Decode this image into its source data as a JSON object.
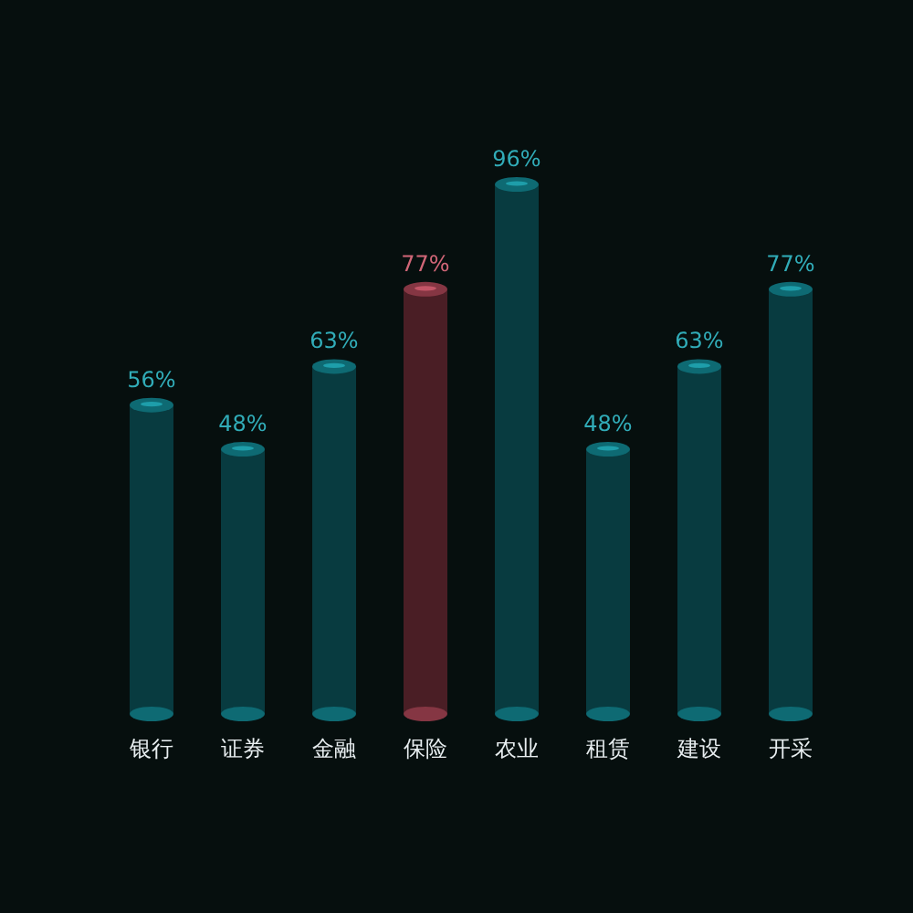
{
  "chart_data": {
    "type": "bar",
    "categories": [
      "银行",
      "证券",
      "金融",
      "保险",
      "农业",
      "租赁",
      "建设",
      "开采"
    ],
    "values": [
      56,
      48,
      63,
      77,
      96,
      48,
      63,
      77
    ],
    "value_labels": [
      "56%",
      "48%",
      "63%",
      "77%",
      "96%",
      "48%",
      "63%",
      "77%"
    ],
    "colors": [
      "#083b40",
      "#083b40",
      "#083b40",
      "#4a1e25",
      "#083b40",
      "#083b40",
      "#083b40",
      "#083b40"
    ],
    "tick_labels": "x"
  }
}
